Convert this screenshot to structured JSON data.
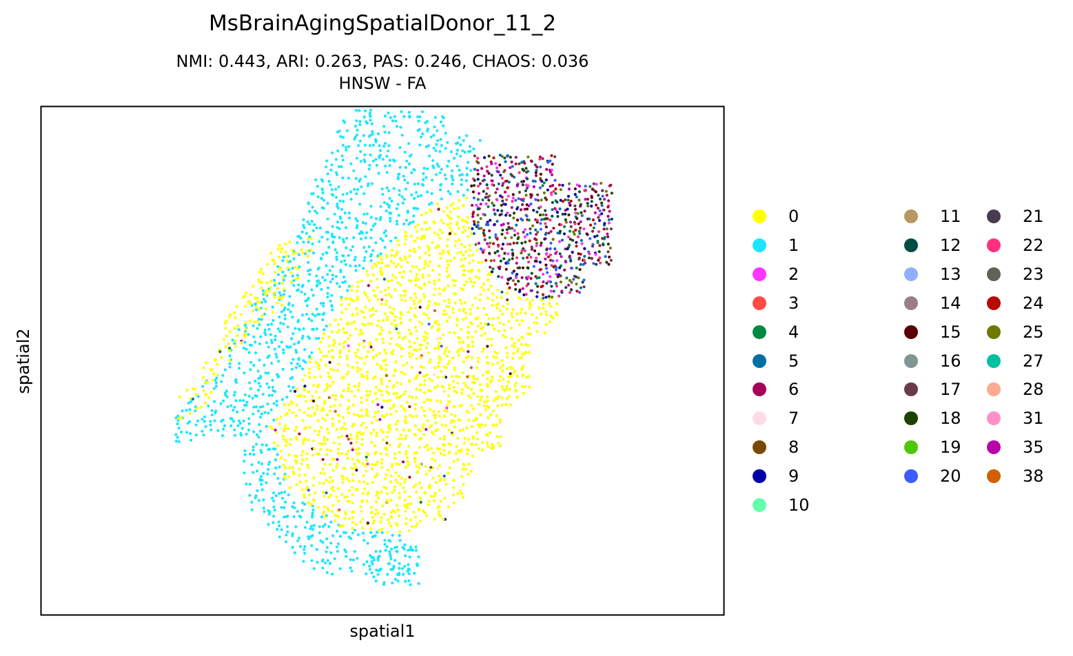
{
  "chart_data": {
    "type": "scatter",
    "title": "MsBrainAgingSpatialDonor_11_2",
    "subtitle": "NMI: 0.443,  ARI: 0.263,  PAS: 0.246,  CHAOS: 0.036",
    "subtitle2": "HNSW - FA",
    "xlabel": "spatial1",
    "ylabel": "spatial2",
    "xticks": false,
    "yticks": false,
    "grid": false,
    "legend_position": "right",
    "legend_columns": 3,
    "clusters": [
      {
        "label": "0",
        "color": "#ffff00"
      },
      {
        "label": "1",
        "color": "#1ce6ff"
      },
      {
        "label": "2",
        "color": "#ff34ff"
      },
      {
        "label": "3",
        "color": "#ff4a46"
      },
      {
        "label": "4",
        "color": "#008941"
      },
      {
        "label": "5",
        "color": "#006fa6"
      },
      {
        "label": "6",
        "color": "#a30059"
      },
      {
        "label": "7",
        "color": "#ffdbe5"
      },
      {
        "label": "8",
        "color": "#7a4900"
      },
      {
        "label": "9",
        "color": "#0000a6"
      },
      {
        "label": "10",
        "color": "#63ffac"
      },
      {
        "label": "11",
        "color": "#b79762"
      },
      {
        "label": "12",
        "color": "#004d43"
      },
      {
        "label": "13",
        "color": "#8fb0ff"
      },
      {
        "label": "14",
        "color": "#997d87"
      },
      {
        "label": "15",
        "color": "#5a0007"
      },
      {
        "label": "16",
        "color": "#809693"
      },
      {
        "label": "17",
        "color": "#6a3a4c"
      },
      {
        "label": "18",
        "color": "#1b4400"
      },
      {
        "label": "19",
        "color": "#4fc601"
      },
      {
        "label": "20",
        "color": "#3b5dff"
      },
      {
        "label": "21",
        "color": "#4a3b53"
      },
      {
        "label": "22",
        "color": "#ff2f80"
      },
      {
        "label": "23",
        "color": "#61615a"
      },
      {
        "label": "24",
        "color": "#ba0900"
      },
      {
        "label": "25",
        "color": "#6b7900"
      },
      {
        "label": "27",
        "color": "#00c2a0"
      },
      {
        "label": "28",
        "color": "#ffaa92"
      },
      {
        "label": "31",
        "color": "#ff90c9"
      },
      {
        "label": "35",
        "color": "#b903aa"
      },
      {
        "label": "38",
        "color": "#d16100"
      }
    ],
    "regions": [
      {
        "cluster": "1",
        "density": 0.55,
        "polygon": [
          [
            440,
            5
          ],
          [
            590,
            5
          ],
          [
            590,
            40
          ],
          [
            640,
            45
          ],
          [
            640,
            70
          ],
          [
            625,
            80
          ],
          [
            625,
            130
          ],
          [
            570,
            140
          ],
          [
            470,
            240
          ],
          [
            435,
            280
          ],
          [
            380,
            390
          ],
          [
            330,
            470
          ],
          [
            365,
            560
          ],
          [
            440,
            610
          ],
          [
            520,
            620
          ],
          [
            550,
            640
          ],
          [
            550,
            680
          ],
          [
            480,
            680
          ],
          [
            400,
            680
          ],
          [
            360,
            640
          ],
          [
            300,
            580
          ],
          [
            290,
            480
          ],
          [
            230,
            480
          ],
          [
            195,
            500
          ],
          [
            195,
            450
          ],
          [
            240,
            400
          ],
          [
            300,
            300
          ],
          [
            360,
            200
          ],
          [
            395,
            120
          ],
          [
            400,
            90
          ],
          [
            430,
            60
          ],
          [
            430,
            35
          ]
        ]
      },
      {
        "cluster": "0",
        "density": 0.7,
        "polygon": [
          [
            570,
            140
          ],
          [
            625,
            130
          ],
          [
            625,
            190
          ],
          [
            660,
            250
          ],
          [
            700,
            280
          ],
          [
            750,
            280
          ],
          [
            750,
            320
          ],
          [
            710,
            340
          ],
          [
            710,
            420
          ],
          [
            670,
            440
          ],
          [
            670,
            500
          ],
          [
            630,
            500
          ],
          [
            620,
            560
          ],
          [
            590,
            600
          ],
          [
            560,
            600
          ],
          [
            540,
            620
          ],
          [
            480,
            620
          ],
          [
            430,
            610
          ],
          [
            360,
            560
          ],
          [
            330,
            470
          ],
          [
            380,
            390
          ],
          [
            435,
            280
          ],
          [
            470,
            240
          ]
        ]
      },
      {
        "cluster": "0",
        "density": 0.55,
        "polygon": [
          [
            355,
            190
          ],
          [
            395,
            190
          ],
          [
            395,
            220
          ],
          [
            350,
            290
          ],
          [
            300,
            330
          ],
          [
            255,
            400
          ],
          [
            245,
            430
          ],
          [
            200,
            460
          ],
          [
            195,
            430
          ],
          [
            220,
            400
          ],
          [
            230,
            390
          ],
          [
            270,
            310
          ],
          [
            310,
            250
          ],
          [
            330,
            215
          ]
        ]
      },
      {
        "cluster": "1",
        "density": 0.45,
        "polygon": [
          [
            480,
            640
          ],
          [
            545,
            640
          ],
          [
            550,
            700
          ],
          [
            480,
            700
          ]
        ]
      },
      {
        "cluster": "mixed",
        "density": 1.0,
        "polygon": [
          [
            630,
            70
          ],
          [
            750,
            70
          ],
          [
            750,
            110
          ],
          [
            830,
            110
          ],
          [
            830,
            230
          ],
          [
            790,
            230
          ],
          [
            790,
            270
          ],
          [
            740,
            280
          ],
          [
            700,
            280
          ],
          [
            660,
            250
          ],
          [
            625,
            190
          ],
          [
            625,
            110
          ]
        ]
      }
    ],
    "mixed_clusters": [
      "2",
      "4",
      "5",
      "6",
      "9",
      "12",
      "15",
      "17",
      "18",
      "20",
      "22",
      "24",
      "25",
      "35"
    ],
    "sprinkle_clusters": [
      "2",
      "3",
      "5",
      "6",
      "9",
      "15",
      "20",
      "24",
      "35",
      "38",
      "7",
      "8",
      "4"
    ]
  }
}
